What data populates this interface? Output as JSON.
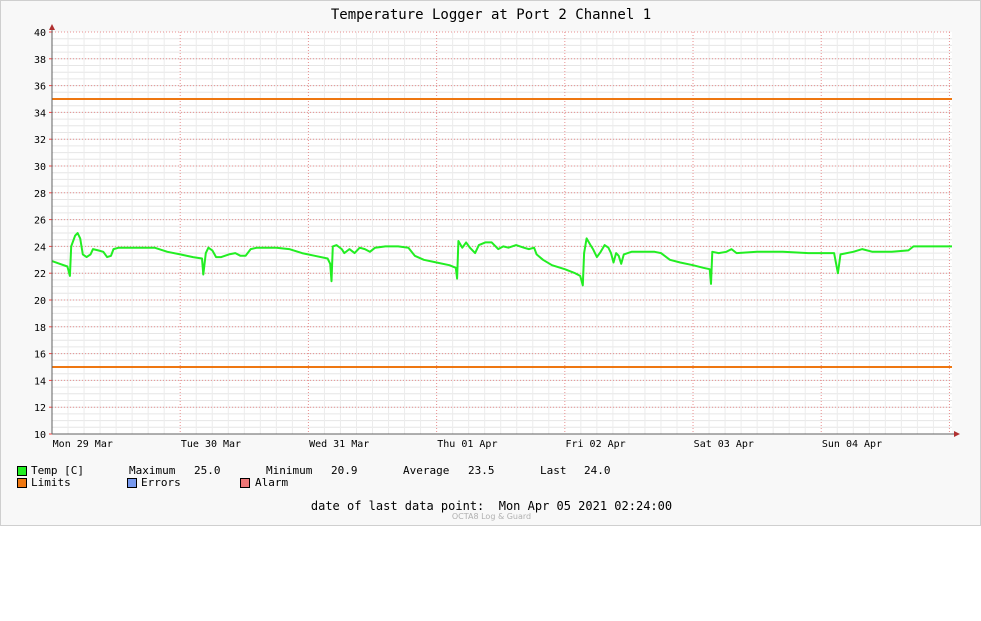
{
  "colors": {
    "temp": "#22ee22",
    "limits": "#ee7711",
    "errors": "#7799ee",
    "alarm": "#ee7777"
  },
  "chart_data": {
    "type": "line",
    "title": "Temperature Logger at Port 2 Channel 1",
    "xlabel": "",
    "ylabel": "",
    "ylim": [
      10,
      40
    ],
    "xlim": [
      0,
      7.02
    ],
    "yticks": [
      10,
      12,
      14,
      16,
      18,
      20,
      22,
      24,
      26,
      28,
      30,
      32,
      34,
      36,
      38,
      40
    ],
    "xticks": [
      {
        "x": 0.24,
        "label": "Mon 29 Mar"
      },
      {
        "x": 1.24,
        "label": "Tue 30 Mar"
      },
      {
        "x": 2.24,
        "label": "Wed 31 Mar"
      },
      {
        "x": 3.24,
        "label": "Thu 01 Apr"
      },
      {
        "x": 4.24,
        "label": "Fri 02 Apr"
      },
      {
        "x": 5.24,
        "label": "Sat 03 Apr"
      },
      {
        "x": 6.24,
        "label": "Sun 04 Apr"
      }
    ],
    "grid": true,
    "series": [
      {
        "name": "Temp [C]",
        "color": "#22ee22",
        "points": [
          [
            0.0,
            22.9
          ],
          [
            0.06,
            22.7
          ],
          [
            0.12,
            22.5
          ],
          [
            0.14,
            21.8
          ],
          [
            0.15,
            24.0
          ],
          [
            0.18,
            24.8
          ],
          [
            0.2,
            25.0
          ],
          [
            0.22,
            24.6
          ],
          [
            0.24,
            23.4
          ],
          [
            0.27,
            23.2
          ],
          [
            0.3,
            23.4
          ],
          [
            0.32,
            23.8
          ],
          [
            0.36,
            23.7
          ],
          [
            0.4,
            23.6
          ],
          [
            0.43,
            23.2
          ],
          [
            0.46,
            23.3
          ],
          [
            0.48,
            23.8
          ],
          [
            0.52,
            23.9
          ],
          [
            0.65,
            23.9
          ],
          [
            0.8,
            23.9
          ],
          [
            0.9,
            23.6
          ],
          [
            1.0,
            23.4
          ],
          [
            1.1,
            23.2
          ],
          [
            1.17,
            23.1
          ],
          [
            1.18,
            21.9
          ],
          [
            1.2,
            23.5
          ],
          [
            1.22,
            23.9
          ],
          [
            1.25,
            23.7
          ],
          [
            1.28,
            23.2
          ],
          [
            1.32,
            23.2
          ],
          [
            1.38,
            23.4
          ],
          [
            1.43,
            23.5
          ],
          [
            1.47,
            23.3
          ],
          [
            1.51,
            23.3
          ],
          [
            1.55,
            23.8
          ],
          [
            1.6,
            23.9
          ],
          [
            1.75,
            23.9
          ],
          [
            1.85,
            23.8
          ],
          [
            1.95,
            23.5
          ],
          [
            2.05,
            23.3
          ],
          [
            2.15,
            23.1
          ],
          [
            2.17,
            22.7
          ],
          [
            2.18,
            21.4
          ],
          [
            2.19,
            24.0
          ],
          [
            2.22,
            24.1
          ],
          [
            2.26,
            23.8
          ],
          [
            2.28,
            23.5
          ],
          [
            2.32,
            23.8
          ],
          [
            2.36,
            23.5
          ],
          [
            2.4,
            23.9
          ],
          [
            2.44,
            23.8
          ],
          [
            2.48,
            23.6
          ],
          [
            2.52,
            23.9
          ],
          [
            2.6,
            24.0
          ],
          [
            2.7,
            24.0
          ],
          [
            2.78,
            23.9
          ],
          [
            2.83,
            23.3
          ],
          [
            2.9,
            23.0
          ],
          [
            3.0,
            22.8
          ],
          [
            3.1,
            22.6
          ],
          [
            3.15,
            22.4
          ],
          [
            3.16,
            21.6
          ],
          [
            3.17,
            24.4
          ],
          [
            3.2,
            23.9
          ],
          [
            3.23,
            24.3
          ],
          [
            3.26,
            23.9
          ],
          [
            3.3,
            23.5
          ],
          [
            3.33,
            24.1
          ],
          [
            3.38,
            24.3
          ],
          [
            3.43,
            24.3
          ],
          [
            3.48,
            23.8
          ],
          [
            3.52,
            24.0
          ],
          [
            3.56,
            23.9
          ],
          [
            3.62,
            24.1
          ],
          [
            3.68,
            23.9
          ],
          [
            3.72,
            23.8
          ],
          [
            3.76,
            23.9
          ],
          [
            3.78,
            23.4
          ],
          [
            3.83,
            23.0
          ],
          [
            3.9,
            22.6
          ],
          [
            4.0,
            22.3
          ],
          [
            4.08,
            22.0
          ],
          [
            4.12,
            21.8
          ],
          [
            4.14,
            21.1
          ],
          [
            4.15,
            23.5
          ],
          [
            4.17,
            24.6
          ],
          [
            4.2,
            24.1
          ],
          [
            4.22,
            23.8
          ],
          [
            4.25,
            23.2
          ],
          [
            4.28,
            23.6
          ],
          [
            4.31,
            24.1
          ],
          [
            4.34,
            23.9
          ],
          [
            4.36,
            23.5
          ],
          [
            4.38,
            22.8
          ],
          [
            4.4,
            23.5
          ],
          [
            4.42,
            23.3
          ],
          [
            4.44,
            22.7
          ],
          [
            4.46,
            23.4
          ],
          [
            4.52,
            23.6
          ],
          [
            4.6,
            23.6
          ],
          [
            4.7,
            23.6
          ],
          [
            4.75,
            23.5
          ],
          [
            4.82,
            23.0
          ],
          [
            4.9,
            22.8
          ],
          [
            5.0,
            22.6
          ],
          [
            5.08,
            22.4
          ],
          [
            5.13,
            22.3
          ],
          [
            5.14,
            21.2
          ],
          [
            5.15,
            23.6
          ],
          [
            5.2,
            23.5
          ],
          [
            5.26,
            23.6
          ],
          [
            5.3,
            23.8
          ],
          [
            5.34,
            23.5
          ],
          [
            5.5,
            23.6
          ],
          [
            5.7,
            23.6
          ],
          [
            5.9,
            23.5
          ],
          [
            6.1,
            23.5
          ],
          [
            6.13,
            22.0
          ],
          [
            6.15,
            23.4
          ],
          [
            6.25,
            23.6
          ],
          [
            6.32,
            23.8
          ],
          [
            6.4,
            23.6
          ],
          [
            6.55,
            23.6
          ],
          [
            6.68,
            23.7
          ],
          [
            6.72,
            24.0
          ],
          [
            6.85,
            24.0
          ],
          [
            7.02,
            24.0
          ]
        ]
      },
      {
        "name": "Limits",
        "color": "#ee7711",
        "y": 35
      },
      {
        "name": "Limits",
        "color": "#ee7711",
        "y": 15
      }
    ]
  },
  "legend": {
    "temp_label": "Temp [C]",
    "max_label": "Maximum",
    "max_value": "25.0",
    "min_label": "Minimum",
    "min_value": "20.9",
    "avg_label": "Average",
    "avg_value": "23.5",
    "last_label": "Last",
    "last_value": "24.0",
    "limits_label": "Limits",
    "errors_label": "Errors",
    "alarm_label": "Alarm"
  },
  "footer": {
    "last_point": "date of last data point:  Mon Apr 05 2021 02:24:00",
    "watermark": "OCTA8 Log & Guard"
  }
}
